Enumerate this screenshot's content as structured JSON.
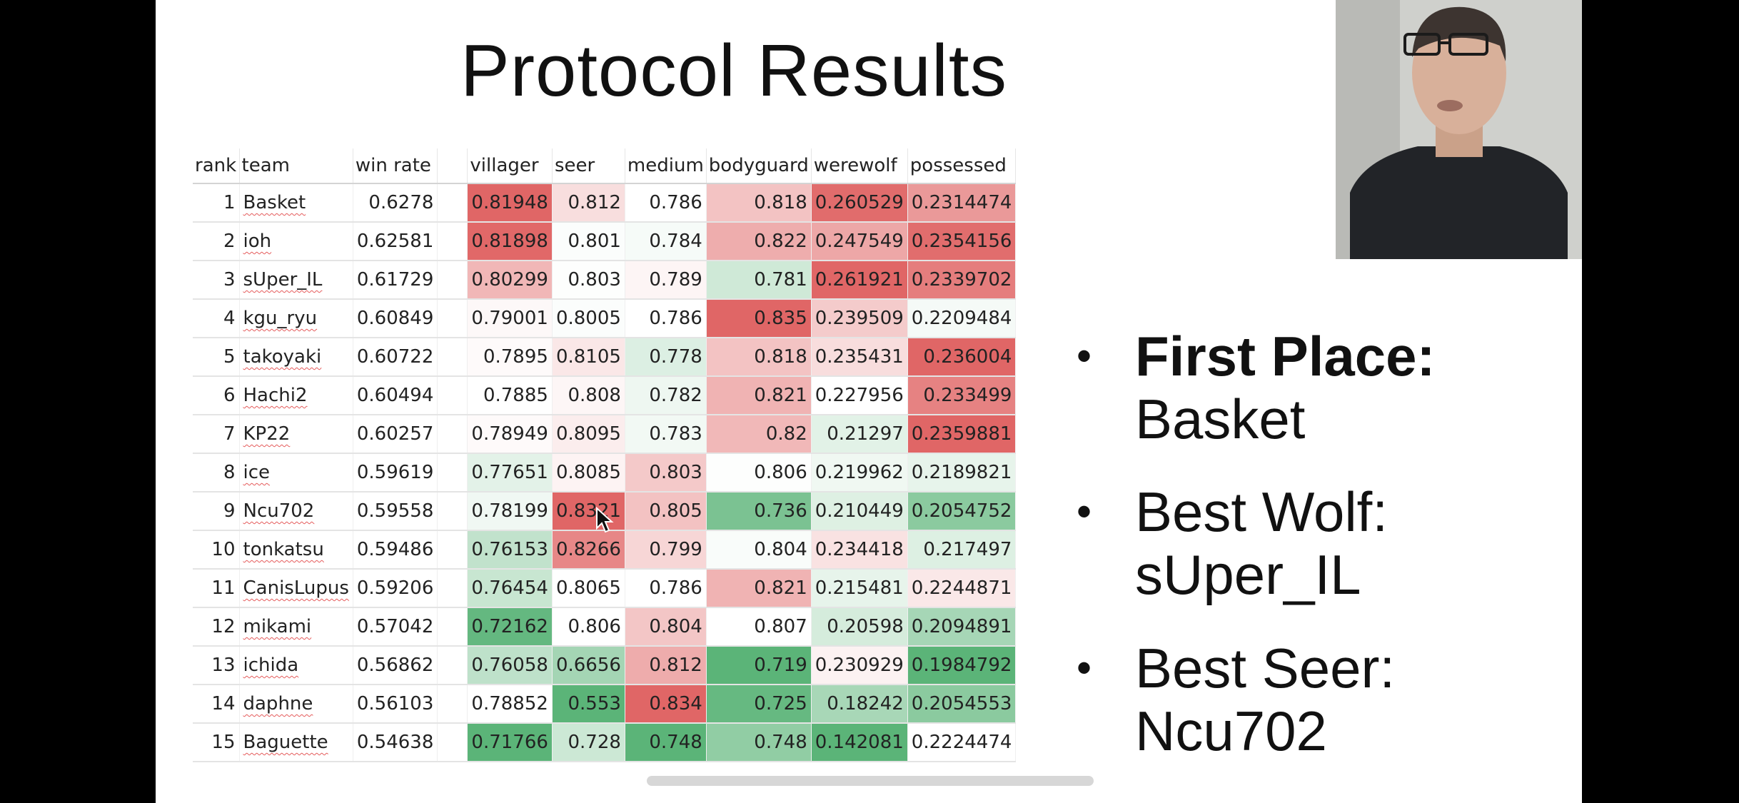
{
  "slide": {
    "title": "Protocol Results"
  },
  "table": {
    "headers": [
      "rank",
      "team",
      "win rate",
      "",
      "villager",
      "seer",
      "medium",
      "bodyguard",
      "werewolf",
      "possessed"
    ],
    "rows": [
      {
        "rank": "1",
        "team": "Basket",
        "win_rate": "0.6278",
        "villager": "0.81948",
        "seer": "0.812",
        "medium": "0.786",
        "bodyguard": "0.818",
        "werewolf": "0.260529",
        "possessed": "0.2314474"
      },
      {
        "rank": "2",
        "team": "ioh",
        "win_rate": "0.62581",
        "villager": "0.81898",
        "seer": "0.801",
        "medium": "0.784",
        "bodyguard": "0.822",
        "werewolf": "0.247549",
        "possessed": "0.2354156"
      },
      {
        "rank": "3",
        "team": "sUper_IL",
        "win_rate": "0.61729",
        "villager": "0.80299",
        "seer": "0.803",
        "medium": "0.789",
        "bodyguard": "0.781",
        "werewolf": "0.261921",
        "possessed": "0.2339702"
      },
      {
        "rank": "4",
        "team": "kgu_ryu",
        "win_rate": "0.60849",
        "villager": "0.79001",
        "seer": "0.8005",
        "medium": "0.786",
        "bodyguard": "0.835",
        "werewolf": "0.239509",
        "possessed": "0.2209484"
      },
      {
        "rank": "5",
        "team": "takoyaki",
        "win_rate": "0.60722",
        "villager": "0.7895",
        "seer": "0.8105",
        "medium": "0.778",
        "bodyguard": "0.818",
        "werewolf": "0.235431",
        "possessed": "0.236004"
      },
      {
        "rank": "6",
        "team": "Hachi2",
        "win_rate": "0.60494",
        "villager": "0.7885",
        "seer": "0.808",
        "medium": "0.782",
        "bodyguard": "0.821",
        "werewolf": "0.227956",
        "possessed": "0.233499"
      },
      {
        "rank": "7",
        "team": "KP22",
        "win_rate": "0.60257",
        "villager": "0.78949",
        "seer": "0.8095",
        "medium": "0.783",
        "bodyguard": "0.82",
        "werewolf": "0.21297",
        "possessed": "0.2359881"
      },
      {
        "rank": "8",
        "team": "ice",
        "win_rate": "0.59619",
        "villager": "0.77651",
        "seer": "0.8085",
        "medium": "0.803",
        "bodyguard": "0.806",
        "werewolf": "0.219962",
        "possessed": "0.2189821"
      },
      {
        "rank": "9",
        "team": "Ncu702",
        "win_rate": "0.59558",
        "villager": "0.78199",
        "seer": "0.8321",
        "medium": "0.805",
        "bodyguard": "0.736",
        "werewolf": "0.210449",
        "possessed": "0.2054752"
      },
      {
        "rank": "10",
        "team": "tonkatsu",
        "win_rate": "0.59486",
        "villager": "0.76153",
        "seer": "0.8266",
        "medium": "0.799",
        "bodyguard": "0.804",
        "werewolf": "0.234418",
        "possessed": "0.217497"
      },
      {
        "rank": "11",
        "team": "CanisLupus",
        "win_rate": "0.59206",
        "villager": "0.76454",
        "seer": "0.8065",
        "medium": "0.786",
        "bodyguard": "0.821",
        "werewolf": "0.215481",
        "possessed": "0.2244871"
      },
      {
        "rank": "12",
        "team": "mikami",
        "win_rate": "0.57042",
        "villager": "0.72162",
        "seer": "0.806",
        "medium": "0.804",
        "bodyguard": "0.807",
        "werewolf": "0.20598",
        "possessed": "0.2094891"
      },
      {
        "rank": "13",
        "team": "ichida",
        "win_rate": "0.56862",
        "villager": "0.76058",
        "seer": "0.6656",
        "medium": "0.812",
        "bodyguard": "0.719",
        "werewolf": "0.230929",
        "possessed": "0.1984792"
      },
      {
        "rank": "14",
        "team": "daphne",
        "win_rate": "0.56103",
        "villager": "0.78852",
        "seer": "0.553",
        "medium": "0.834",
        "bodyguard": "0.725",
        "werewolf": "0.18242",
        "possessed": "0.2054553"
      },
      {
        "rank": "15",
        "team": "Baguette",
        "win_rate": "0.54638",
        "villager": "0.71766",
        "seer": "0.728",
        "medium": "0.748",
        "bodyguard": "0.748",
        "werewolf": "0.142081",
        "possessed": "0.2224474"
      }
    ]
  },
  "bullets": [
    {
      "heading": "First Place:",
      "value": "Basket",
      "bold": true
    },
    {
      "heading": "Best Wolf:",
      "value": "sUper_IL",
      "bold": false
    },
    {
      "heading": "Best Seer:",
      "value": "Ncu702",
      "bold": false
    }
  ],
  "colors": {
    "high": "#e06666",
    "mid": "#ffffff",
    "low": "#5bb478",
    "background": "#000000",
    "slide": "#ffffff"
  }
}
